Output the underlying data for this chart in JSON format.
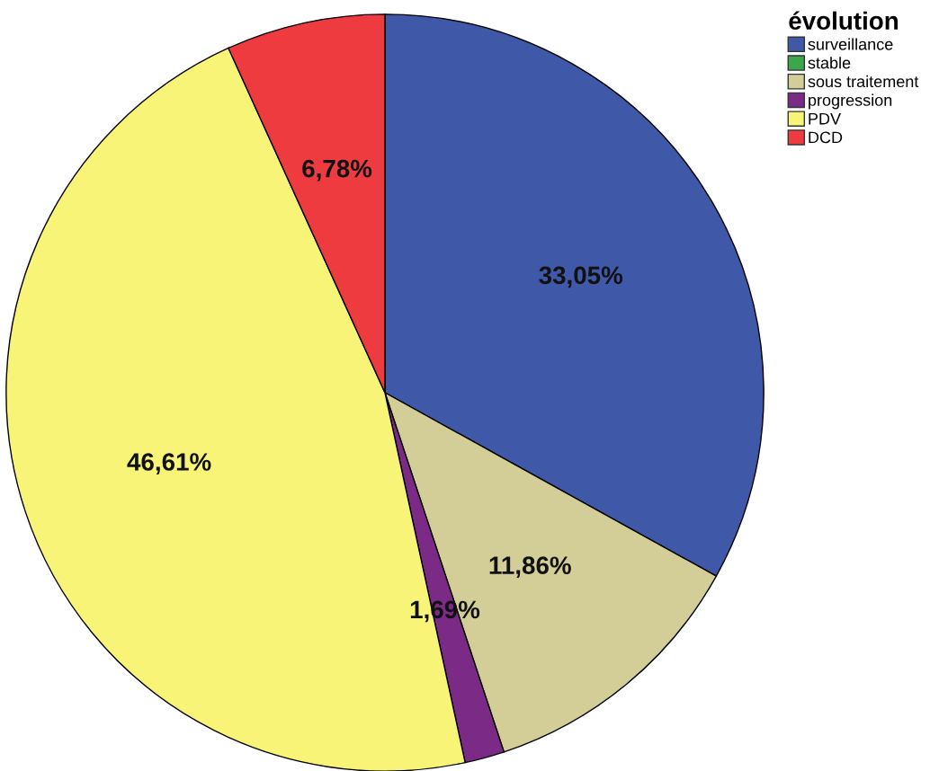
{
  "chart_data": {
    "type": "pie",
    "legend_title": "évolution",
    "legend": "top right",
    "categories": [
      "surveillance",
      "stable",
      "sous traitement",
      "progression",
      "PDV",
      "DCD"
    ],
    "values": [
      33.05,
      0,
      11.86,
      1.69,
      46.61,
      6.78
    ],
    "colors": [
      "#3f58a8",
      "#3aa84a",
      "#d3cd98",
      "#7b2a86",
      "#f8f477",
      "#ee3b40"
    ],
    "value_labels": [
      "33,05%",
      null,
      "11,86%",
      "1,69%",
      "46,61%",
      "6,78%"
    ]
  }
}
